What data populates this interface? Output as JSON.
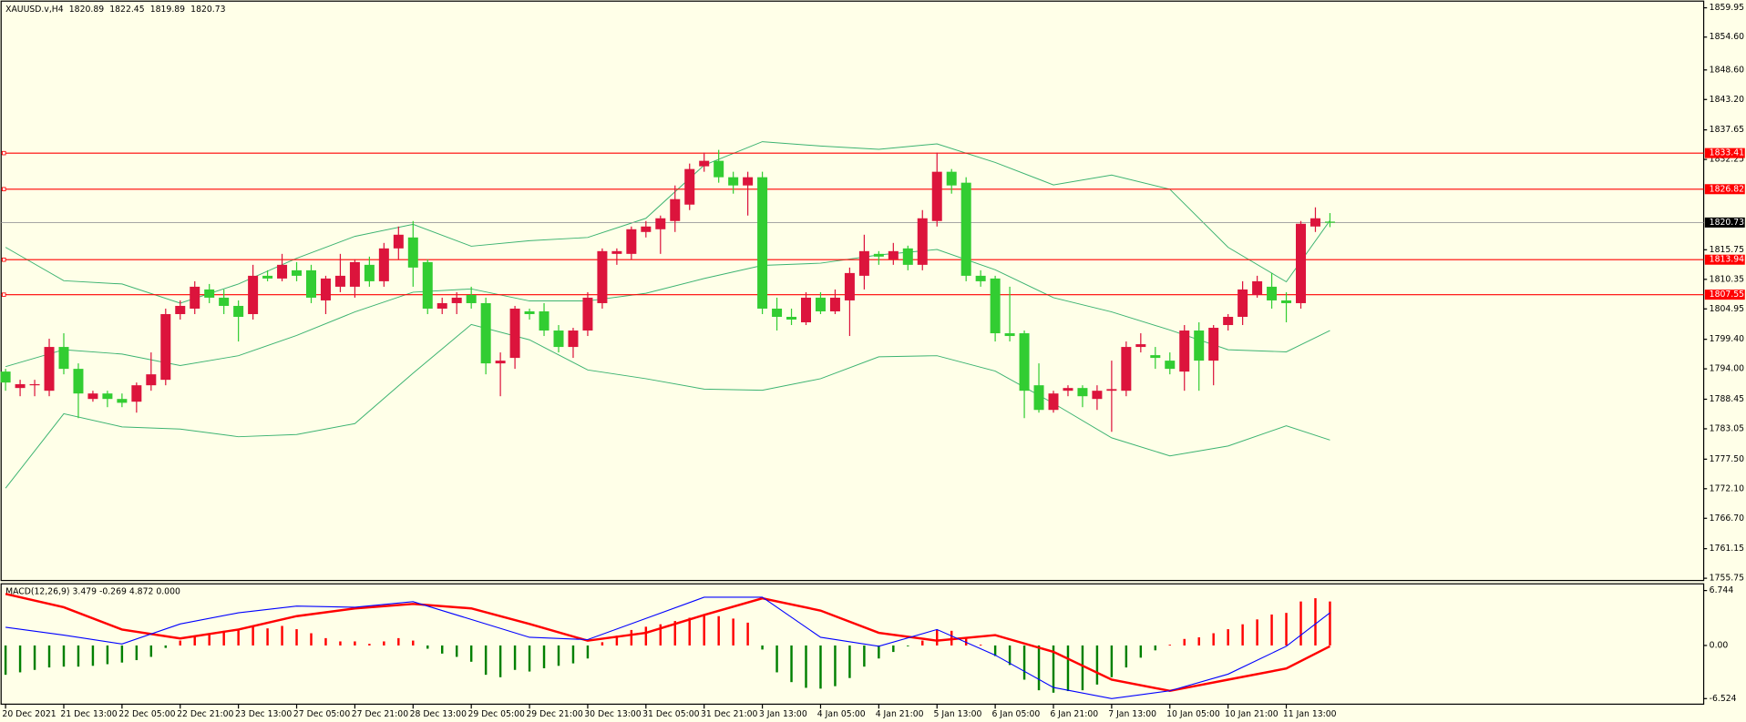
{
  "chart_data": [
    {
      "type": "candlestick",
      "title": "XAUUSD.v,H4",
      "categories": [
        "20 Dec 2021",
        null,
        null,
        null,
        "21 Dec 13:00",
        null,
        null,
        null,
        "22 Dec 05:00",
        null,
        null,
        null,
        "22 Dec 21:00",
        null,
        null,
        null,
        "23 Dec 13:00",
        null,
        null,
        null,
        "27 Dec 05:00",
        null,
        null,
        null,
        "27 Dec 21:00",
        null,
        null,
        null,
        "28 Dec 13:00",
        null,
        null,
        null,
        "29 Dec 05:00",
        null,
        null,
        null,
        "29 Dec 21:00",
        null,
        null,
        null,
        "30 Dec 13:00",
        null,
        null,
        null,
        "31 Dec 05:00",
        null,
        null,
        null,
        "31 Dec 21:00",
        null,
        null,
        null,
        "3 Jan 13:00",
        null,
        null,
        null,
        "4 Jan 05:00",
        null,
        null,
        null,
        "4 Jan 21:00",
        null,
        null,
        null,
        "5 Jan 13:00",
        null,
        null,
        null,
        "6 Jan 05:00",
        null,
        null,
        null,
        "6 Jan 21:00",
        null,
        null,
        null,
        "7 Jan 13:00",
        null,
        null,
        null,
        "10 Jan 05:00",
        null,
        null,
        null,
        "10 Jan 21:00",
        null,
        null,
        null,
        "11 Jan 13:00",
        null,
        null,
        null
      ],
      "open": [
        1793.5,
        1790.5,
        1791,
        1790,
        1798,
        1794,
        1788.5,
        1789.5,
        1788.5,
        1788,
        1791,
        1792,
        1804,
        1805,
        1808.5,
        1807,
        1805.5,
        1804,
        1811,
        1810.5,
        1812,
        1812,
        1806.5,
        1809,
        1809,
        1813,
        1810,
        1816,
        1818,
        1813.5,
        1805,
        1806,
        1807.5,
        1806,
        1795,
        1796,
        1804.5,
        1804.5,
        1801,
        1798,
        1801,
        1806,
        1815,
        1815,
        1819,
        1819.5,
        1821,
        1824,
        1831,
        1832,
        1829,
        1827.5,
        1829,
        1805,
        1803.5,
        1802.5,
        1807,
        1804.5,
        1806.5,
        1811,
        1815,
        1814,
        1816,
        1813,
        1821,
        1830,
        1828,
        1811,
        1810.5,
        1800.5,
        1800.5,
        1791,
        1786.5,
        1790,
        1790.5,
        1788.5,
        1790,
        1790,
        1798,
        1796.5,
        1795.5,
        1793.5,
        1801,
        1795.5,
        1802,
        1803.5,
        1807.5,
        1809,
        1806.5,
        1806,
        1820,
        1820.89
      ],
      "high": [
        1794,
        1792,
        1792,
        1799.5,
        1800.5,
        1795,
        1790,
        1790,
        1789.5,
        1791.5,
        1797,
        1805,
        1806.5,
        1810,
        1809.5,
        1808.5,
        1806.5,
        1813,
        1812,
        1815,
        1813.5,
        1813,
        1811,
        1815,
        1814,
        1814.5,
        1817,
        1820,
        1821,
        1814,
        1807,
        1808,
        1809,
        1807,
        1797,
        1805.5,
        1805,
        1806,
        1802,
        1801.5,
        1808,
        1816,
        1816,
        1820,
        1821,
        1822,
        1827.5,
        1831.5,
        1833.5,
        1834,
        1830,
        1830,
        1830,
        1807,
        1805,
        1808,
        1808,
        1808.5,
        1812.5,
        1818.5,
        1815.5,
        1817,
        1816.5,
        1823,
        1833.5,
        1830.5,
        1829,
        1812,
        1811,
        1809,
        1801,
        1795,
        1790,
        1791,
        1791,
        1791,
        1795.5,
        1799,
        1800.5,
        1798,
        1797,
        1802,
        1802.5,
        1802,
        1804,
        1810,
        1811,
        1811.5,
        1808,
        1821,
        1823.5,
        1822.45
      ],
      "low": [
        1790,
        1789,
        1789,
        1789,
        1793,
        1785,
        1788,
        1787,
        1787,
        1786,
        1790,
        1791,
        1803,
        1804,
        1806,
        1804,
        1799,
        1803,
        1810,
        1810,
        1810,
        1806,
        1804,
        1808,
        1807,
        1809,
        1809,
        1814,
        1809,
        1804,
        1804,
        1804,
        1805,
        1793,
        1789,
        1794,
        1803,
        1800,
        1797,
        1796,
        1800,
        1805,
        1813,
        1814,
        1818,
        1815,
        1819,
        1823,
        1830,
        1828,
        1826,
        1822,
        1804,
        1801,
        1802,
        1802,
        1804,
        1804,
        1800,
        1808.5,
        1813,
        1813,
        1812,
        1812,
        1820,
        1826,
        1810,
        1809,
        1799,
        1799,
        1785,
        1786,
        1786,
        1789,
        1787,
        1786.5,
        1782.5,
        1789,
        1797,
        1794,
        1793,
        1790,
        1790,
        1791,
        1801,
        1802,
        1807,
        1805,
        1802.5,
        1805,
        1819,
        1819.89
      ],
      "close": [
        1791.5,
        1791.2,
        1791.2,
        1798,
        1794,
        1789.5,
        1789.5,
        1788.5,
        1787.8,
        1791,
        1793,
        1804,
        1805.5,
        1809,
        1807,
        1805.5,
        1803.5,
        1811,
        1810.5,
        1813,
        1811,
        1807,
        1810.5,
        1811,
        1813.5,
        1810,
        1816,
        1818.5,
        1812.5,
        1805,
        1806,
        1807,
        1806,
        1795,
        1795.5,
        1805,
        1804,
        1801,
        1798,
        1801,
        1807,
        1815.5,
        1815.5,
        1819.5,
        1820,
        1821.5,
        1825,
        1830.5,
        1832,
        1829,
        1827.5,
        1829,
        1805,
        1803.5,
        1803,
        1807,
        1804.5,
        1807,
        1811.5,
        1815.5,
        1814.5,
        1815.5,
        1813,
        1821.5,
        1830,
        1827.5,
        1811,
        1810,
        1800.5,
        1800,
        1790,
        1786.5,
        1789.5,
        1790.5,
        1789,
        1790,
        1790.3,
        1798,
        1798.5,
        1796,
        1794,
        1801,
        1795.5,
        1801.5,
        1803.5,
        1808.5,
        1810,
        1806.5,
        1806,
        1820.5,
        1821.5,
        1820.73
      ],
      "up_color": "#dc143c",
      "down_color": "#32cd32",
      "bands": {
        "color": "#3cb371",
        "x": [
          0,
          4,
          8,
          12,
          16,
          20,
          24,
          28,
          32,
          36,
          40,
          44,
          48,
          52,
          56,
          60,
          64,
          68,
          72,
          76,
          80,
          84,
          88,
          91
        ],
        "upper": [
          1816.2,
          1810.1,
          1809.5,
          1806.0,
          1809.5,
          1814.2,
          1818.2,
          1820.4,
          1816.4,
          1817.4,
          1818.0,
          1821.5,
          1831.2,
          1835.5,
          1834.7,
          1834.1,
          1835.1,
          1831.7,
          1827.6,
          1829.4,
          1826.8,
          1816.2,
          1809.9,
          1821.1
        ],
        "middle": [
          1794.4,
          1797.5,
          1796.7,
          1794.6,
          1796.4,
          1800.1,
          1804.4,
          1808.0,
          1808.6,
          1806.4,
          1806.4,
          1807.8,
          1810.5,
          1812.9,
          1813.3,
          1814.8,
          1815.8,
          1812.1,
          1807.0,
          1804.4,
          1801.1,
          1797.5,
          1797.1,
          1801.0
        ],
        "lower": [
          1772.2,
          1785.8,
          1783.4,
          1783.0,
          1781.6,
          1782.0,
          1784.0,
          1793.2,
          1802.1,
          1799.3,
          1793.8,
          1792.2,
          1790.3,
          1790.1,
          1792.2,
          1796.2,
          1796.4,
          1793.6,
          1787.7,
          1781.4,
          1778.1,
          1779.9,
          1783.6,
          1781.0
        ]
      },
      "levels": [
        1833.41,
        1826.82,
        1813.94,
        1807.55
      ],
      "level_color": "#ff0000",
      "price_line_color": "#9a9a9a",
      "ylim": [
        1755.34,
        1861.17
      ],
      "yticks": [
        1859.95,
        {
          "value": 1854.6,
          "label": "1854.60"
        },
        {
          "value": 1848.6,
          "label": "1848.60"
        },
        {
          "value": 1843.2,
          "label": "1843.20"
        },
        1837.65,
        1832.25,
        1815.75,
        1810.35,
        1804.95,
        {
          "value": 1799.4,
          "label": "1799.40"
        },
        {
          "value": 1794,
          "label": "1794.00"
        },
        1788.45,
        1783.05,
        {
          "value": 1777.5,
          "label": "1777.50"
        },
        {
          "value": 1772.1,
          "label": "1772.10"
        },
        {
          "value": 1766.7,
          "label": "1766.70"
        },
        1761.15,
        1755.75
      ]
    },
    {
      "type": "macd",
      "title": "MACD(12,26,9) 3.479 -0.269 4.872 0.000",
      "histogram": [
        -3.6,
        -3.3,
        -3.0,
        -2.7,
        -2.6,
        -2.6,
        -2.5,
        -2.3,
        -2.1,
        -1.8,
        -1.4,
        -0.3,
        0.6,
        1.2,
        1.5,
        1.8,
        1.9,
        2.3,
        2.1,
        2.4,
        2.0,
        1.5,
        0.9,
        0.5,
        0.5,
        0.2,
        0.5,
        0.9,
        0.6,
        -0.4,
        -1.0,
        -1.4,
        -2.0,
        -3.6,
        -3.9,
        -3.0,
        -3.2,
        -2.8,
        -2.5,
        -2.2,
        -1.6,
        0.4,
        1.2,
        1.9,
        2.3,
        2.6,
        3.0,
        3.4,
        3.8,
        3.6,
        3.3,
        2.8,
        -0.5,
        -3.3,
        -4.5,
        -5.2,
        -5.3,
        -5.0,
        -4.0,
        -2.6,
        -1.6,
        -0.8,
        -0.1,
        0.6,
        1.9,
        1.8,
        1.0,
        0.1,
        -1.3,
        -2.4,
        -4.2,
        -5.5,
        -5.8,
        -5.6,
        -5.5,
        -4.8,
        -3.9,
        -2.7,
        -1.5,
        -0.6,
        0.1,
        0.8,
        1.0,
        1.5,
        2.0,
        2.6,
        3.2,
        3.8,
        4.0,
        5.4,
        5.8,
        5.4
      ],
      "hist_up_color": "#ff0000",
      "hist_down_color": "#008000",
      "macd_line": {
        "color": "#0000ff",
        "x": [
          0,
          4,
          8,
          12,
          16,
          20,
          24,
          28,
          32,
          36,
          40,
          44,
          48,
          52,
          56,
          60,
          64,
          68,
          72,
          76,
          80,
          84,
          88,
          91
        ],
        "values": [
          2.23,
          1.27,
          0.18,
          2.64,
          4.01,
          4.83,
          4.69,
          5.38,
          3.19,
          1.0,
          0.72,
          3.32,
          5.92,
          5.92,
          1.0,
          -0.1,
          1.96,
          -1.19,
          -5.16,
          -6.52,
          -5.57,
          -3.52,
          -0.1,
          4.01
        ]
      },
      "signal_line": {
        "color": "#ff0000",
        "x": [
          0,
          4,
          8,
          12,
          16,
          20,
          24,
          28,
          32,
          36,
          40,
          44,
          48,
          52,
          56,
          60,
          64,
          68,
          72,
          76,
          80,
          84,
          88,
          91
        ],
        "values": [
          6.33,
          4.69,
          1.96,
          0.86,
          1.96,
          3.6,
          4.55,
          5.1,
          4.55,
          2.64,
          0.59,
          1.55,
          3.74,
          5.79,
          4.28,
          1.55,
          0.59,
          1.27,
          -0.78,
          -4.2,
          -5.57,
          -4.2,
          -2.83,
          -0.1
        ]
      },
      "ylim": [
        -7.208,
        7.565
      ],
      "yticks": [
        6.744,
        {
          "value": 0,
          "label": "0.00"
        },
        -6.524
      ]
    }
  ]
}
